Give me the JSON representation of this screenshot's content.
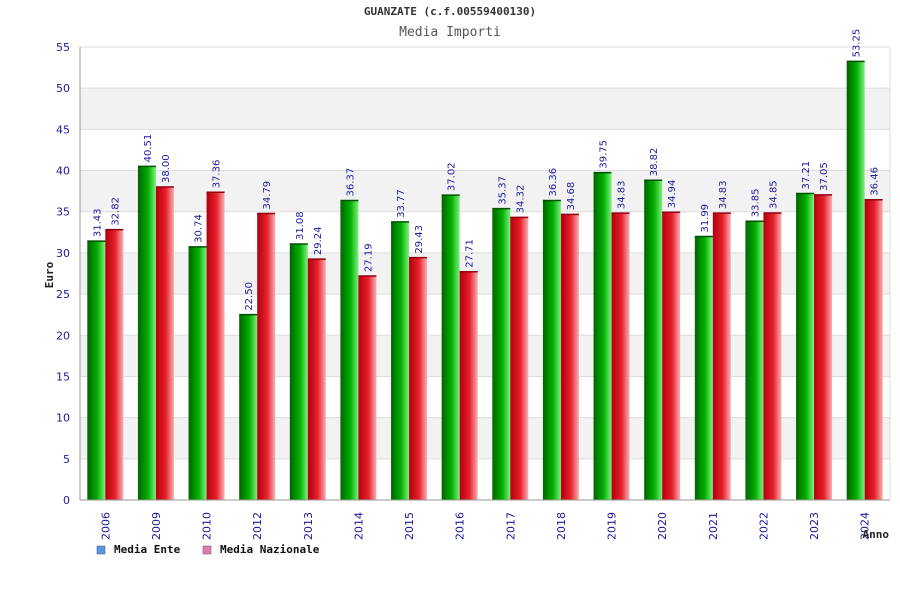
{
  "header": {
    "title": "GUANZATE (c.f.00559400130)",
    "subtitle": "Media Importi"
  },
  "chart_data": {
    "type": "bar",
    "title": "GUANZATE (c.f.00559400130)",
    "subtitle": "Media Importi",
    "xlabel": "Anno",
    "ylabel": "Euro",
    "ylim": [
      0,
      55
    ],
    "yticks": [
      0,
      5,
      10,
      15,
      20,
      25,
      30,
      35,
      40,
      45,
      50,
      55
    ],
    "categories": [
      "2006",
      "2009",
      "2010",
      "2012",
      "2013",
      "2014",
      "2015",
      "2016",
      "2017",
      "2018",
      "2019",
      "2020",
      "2021",
      "2022",
      "2023",
      "2024"
    ],
    "series": [
      {
        "name": "Media Ente",
        "values": [
          31.43,
          40.51,
          30.74,
          22.5,
          31.08,
          36.37,
          33.77,
          37.02,
          35.37,
          36.36,
          39.75,
          38.82,
          31.99,
          33.85,
          37.21,
          53.25
        ]
      },
      {
        "name": "Media Nazionale",
        "values": [
          32.82,
          38.0,
          37.36,
          34.79,
          29.24,
          27.19,
          29.43,
          27.71,
          34.32,
          34.68,
          34.83,
          34.94,
          34.83,
          34.85,
          37.05,
          36.46
        ]
      }
    ],
    "value_labels": [
      [
        "31.43",
        "40.51",
        "30.74",
        "22.50",
        "31.08",
        "36.37",
        "33.77",
        "37.02",
        "35.37",
        "36.36",
        "39.75",
        "38.82",
        "31.99",
        "33.85",
        "37.21",
        "53.25"
      ],
      [
        "32.82",
        "38.00",
        "37.36",
        "34.79",
        "29.24",
        "27.19",
        "29.43",
        "27.71",
        "34.32",
        "34.68",
        "34.83",
        "34.94",
        "34.83",
        "34.85",
        "37.05",
        "36.46"
      ]
    ],
    "grid": true,
    "legend_position": "bottom-left",
    "colors": {
      "ente": "#00b000",
      "nazionale": "#e8202a",
      "legend_ente": "#5599e6",
      "legend_nazionale": "#e07ab0",
      "band": "#f2f2f2",
      "grid": "#dddddd",
      "axis_text": "#1a1a9e"
    }
  }
}
